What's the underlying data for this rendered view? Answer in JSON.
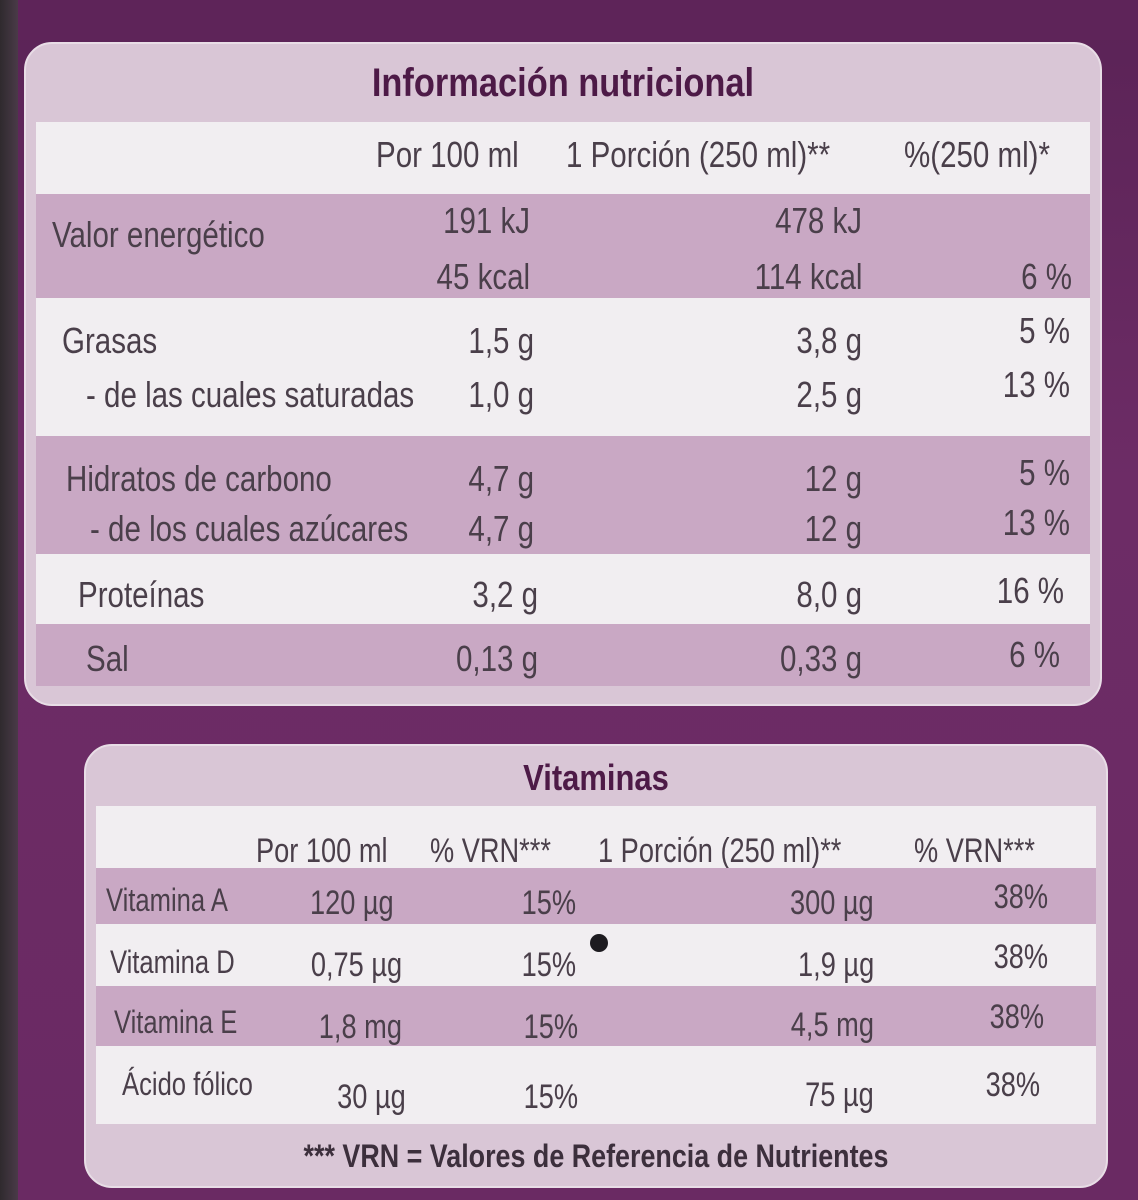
{
  "nutrition": {
    "title": "Información nutricional",
    "headers": [
      "Por 100 ml",
      "1 Porción (250 ml)**",
      "%(250 ml)*"
    ],
    "rows": [
      {
        "name": "Valor energético",
        "per100": "191 kJ",
        "portion": "478 kJ",
        "pct": ""
      },
      {
        "name": "",
        "per100": "45 kcal",
        "portion": "114 kcal",
        "pct": "6 %"
      },
      {
        "name": "Grasas",
        "per100": "1,5 g",
        "portion": "3,8 g",
        "pct": "5 %"
      },
      {
        "name": "- de las cuales saturadas",
        "per100": "1,0 g",
        "portion": "2,5 g",
        "pct": "13 %"
      },
      {
        "name": "Hidratos de carbono",
        "per100": "4,7 g",
        "portion": "12 g",
        "pct": "5 %"
      },
      {
        "name": "- de los cuales azúcares",
        "per100": "4,7 g",
        "portion": "12 g",
        "pct": "13 %"
      },
      {
        "name": "Proteínas",
        "per100": "3,2 g",
        "portion": "8,0 g",
        "pct": "16 %"
      },
      {
        "name": "Sal",
        "per100": "0,13 g",
        "portion": "0,33 g",
        "pct": "6 %"
      }
    ]
  },
  "vitamins": {
    "title": "Vitaminas",
    "headers": [
      "Por 100 ml",
      "% VRN***",
      "1 Porción (250 ml)**",
      "% VRN***"
    ],
    "rows": [
      {
        "name": "Vitamina A",
        "per100": "120 µg",
        "vrn100": "15%",
        "portion": "300 µg",
        "vrnPortion": "38%"
      },
      {
        "name": "Vitamina D",
        "per100": "0,75 µg",
        "vrn100": "15%",
        "portion": "1,9 µg",
        "vrnPortion": "38%"
      },
      {
        "name": "Vitamina E",
        "per100": "1,8 mg",
        "vrn100": "15%",
        "portion": "4,5 mg",
        "vrnPortion": "38%"
      },
      {
        "name": "Ácido fólico",
        "per100": "30 µg",
        "vrn100": "15%",
        "portion": "75 µg",
        "vrnPortion": "38%"
      }
    ],
    "footnote": "*** VRN = Valores de Referencia de Nutrientes"
  },
  "colors": {
    "accent": "#6a2a63",
    "band": "#c9a8c4",
    "light": "#f1eef1"
  }
}
